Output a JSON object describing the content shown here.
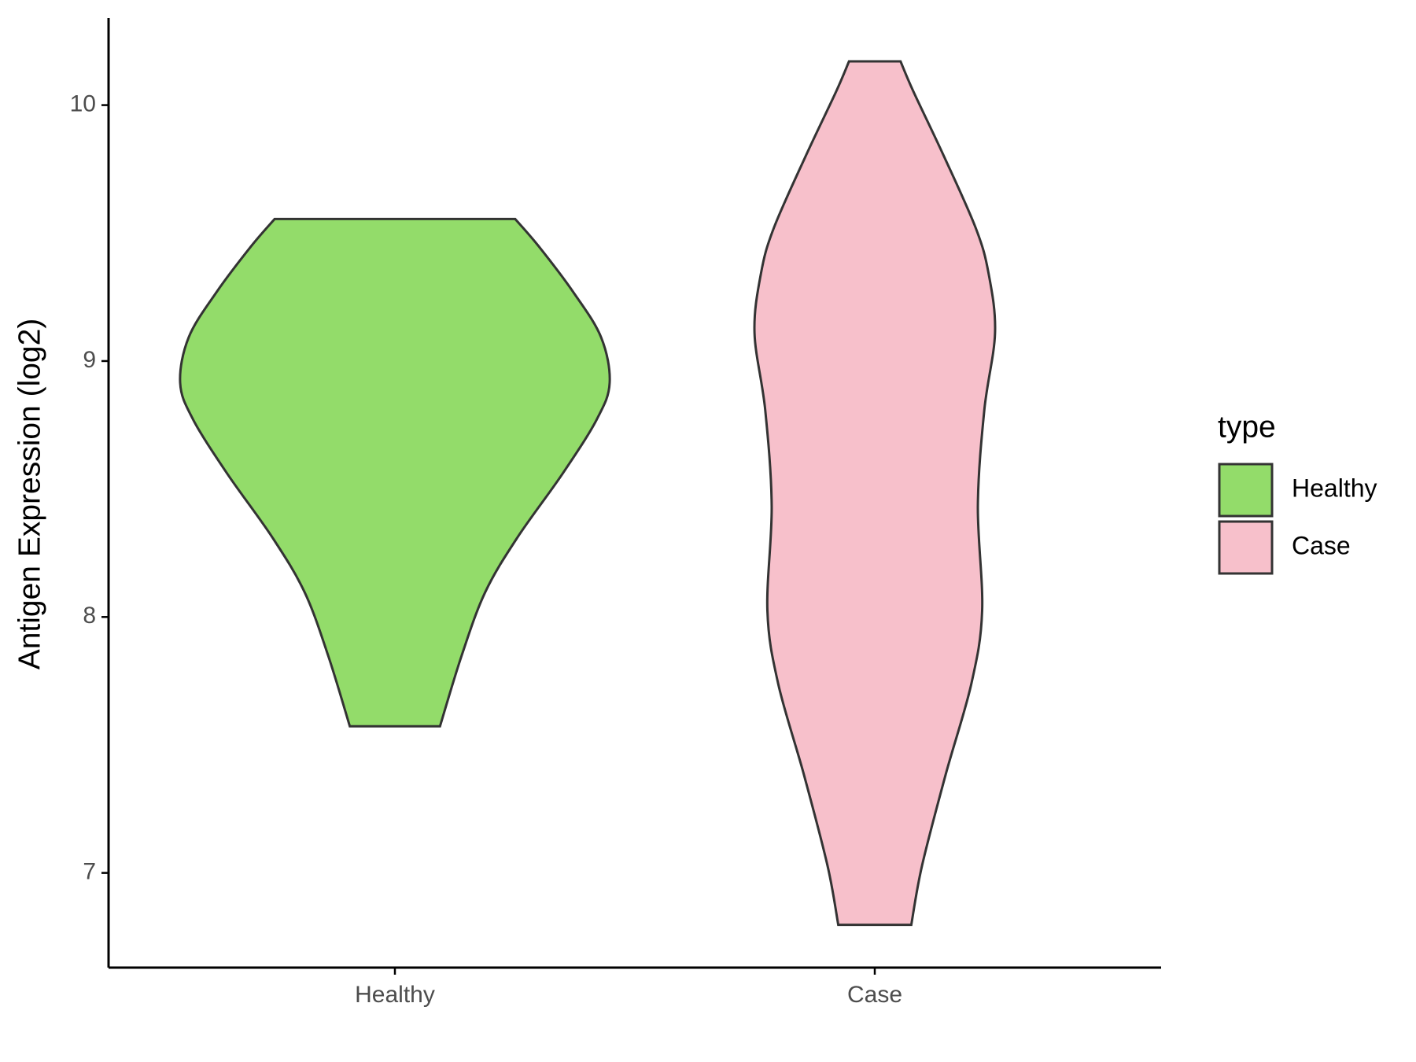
{
  "chart_data": {
    "type": "violin",
    "y_label": "Antigen Expression (log2)",
    "categories": [
      "Healthy",
      "Case"
    ],
    "legend_title": "type",
    "ylim": [
      6.63,
      10.34
    ],
    "yticks": [
      7,
      8,
      9,
      10
    ],
    "series": [
      {
        "name": "Healthy",
        "color": "#93dc6a",
        "values": [
          9.555,
          9.448,
          9.27,
          9.093,
          8.915,
          8.772,
          8.559,
          8.31,
          8.096,
          7.847,
          7.573
        ],
        "density": [
          0.56,
          0.67,
          0.83,
          0.96,
          1.0,
          0.94,
          0.78,
          0.57,
          0.42,
          0.31,
          0.21
        ]
      },
      {
        "name": "Case",
        "color": "#f7c0cb",
        "values": [
          10.171,
          10.053,
          9.804,
          9.52,
          9.342,
          9.11,
          8.808,
          8.434,
          8.025,
          7.74,
          7.384,
          7.028,
          6.797
        ],
        "density": [
          0.12,
          0.18,
          0.32,
          0.47,
          0.53,
          0.56,
          0.51,
          0.48,
          0.5,
          0.45,
          0.33,
          0.22,
          0.17
        ]
      }
    ]
  }
}
